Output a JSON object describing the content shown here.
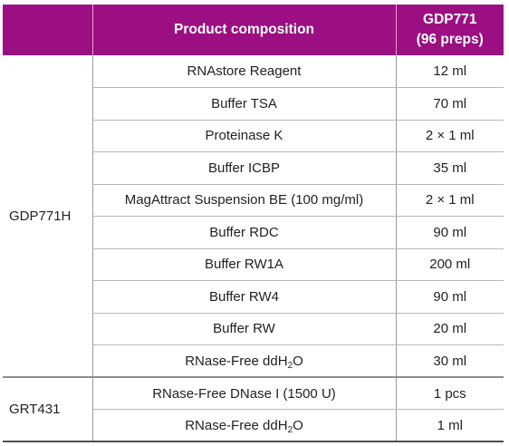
{
  "header": {
    "product_composition": "Product composition",
    "kit_code": "GDP771",
    "kit_size": "(96 preps)"
  },
  "groups": [
    {
      "kit": "GDP771H",
      "rows": [
        {
          "component": "RNAstore Reagent",
          "amount": "12 ml"
        },
        {
          "component": "Buffer TSA",
          "amount": "70 ml"
        },
        {
          "component": "Proteinase K",
          "amount": "2 × 1 ml"
        },
        {
          "component": "Buffer ICBP",
          "amount": "35 ml"
        },
        {
          "component": "MagAttract Suspension BE (100 mg/ml)",
          "amount": "2 × 1 ml"
        },
        {
          "component": "Buffer RDC",
          "amount": "90 ml"
        },
        {
          "component": "Buffer RW1A",
          "amount": "200 ml"
        },
        {
          "component": "Buffer RW4",
          "amount": "90 ml"
        },
        {
          "component": "Buffer RW",
          "amount": "20 ml"
        },
        {
          "component": "RNase-Free ddH",
          "component_sub": "2",
          "component_tail": "O",
          "amount": "30 ml"
        }
      ]
    },
    {
      "kit": "GRT431",
      "rows": [
        {
          "component": "RNase-Free DNase I (1500 U)",
          "amount": "1 pcs"
        },
        {
          "component": "RNase-Free ddH",
          "component_sub": "2",
          "component_tail": "O",
          "amount": "1 ml"
        }
      ]
    }
  ]
}
